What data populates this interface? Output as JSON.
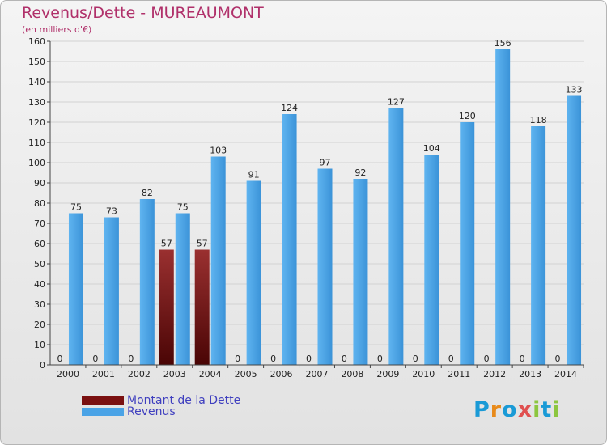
{
  "chart_data": {
    "type": "bar",
    "title": "Revenus/Dette - MUREAUMONT",
    "subtitle": "(en milliers d'€)",
    "categories": [
      "2000",
      "2001",
      "2002",
      "2003",
      "2004",
      "2005",
      "2006",
      "2007",
      "2008",
      "2009",
      "2010",
      "2011",
      "2012",
      "2013",
      "2014"
    ],
    "series": [
      {
        "name": "Montant de la Dette",
        "color": "#7a1010",
        "values": [
          0,
          0,
          0,
          57,
          57,
          0,
          0,
          0,
          0,
          0,
          0,
          0,
          0,
          0,
          0
        ]
      },
      {
        "name": "Revenus",
        "color": "#4aa3e6",
        "values": [
          75,
          73,
          82,
          75,
          103,
          91,
          124,
          97,
          92,
          127,
          104,
          120,
          156,
          118,
          133
        ]
      }
    ],
    "ylim": [
      0,
      160
    ],
    "yticks": [
      0,
      10,
      20,
      30,
      40,
      50,
      60,
      70,
      80,
      90,
      100,
      110,
      120,
      130,
      140,
      150,
      160
    ],
    "grid": true,
    "legend": "bottom-left"
  },
  "logo": {
    "text": "Proxiti",
    "letters": [
      "P",
      "r",
      "o",
      "x",
      "i",
      "t",
      "i"
    ],
    "colors": [
      "#1a9ad6",
      "#e88a1a",
      "#1a9ad6",
      "#e05050",
      "#8cc63f",
      "#1a9ad6",
      "#8cc63f"
    ]
  }
}
